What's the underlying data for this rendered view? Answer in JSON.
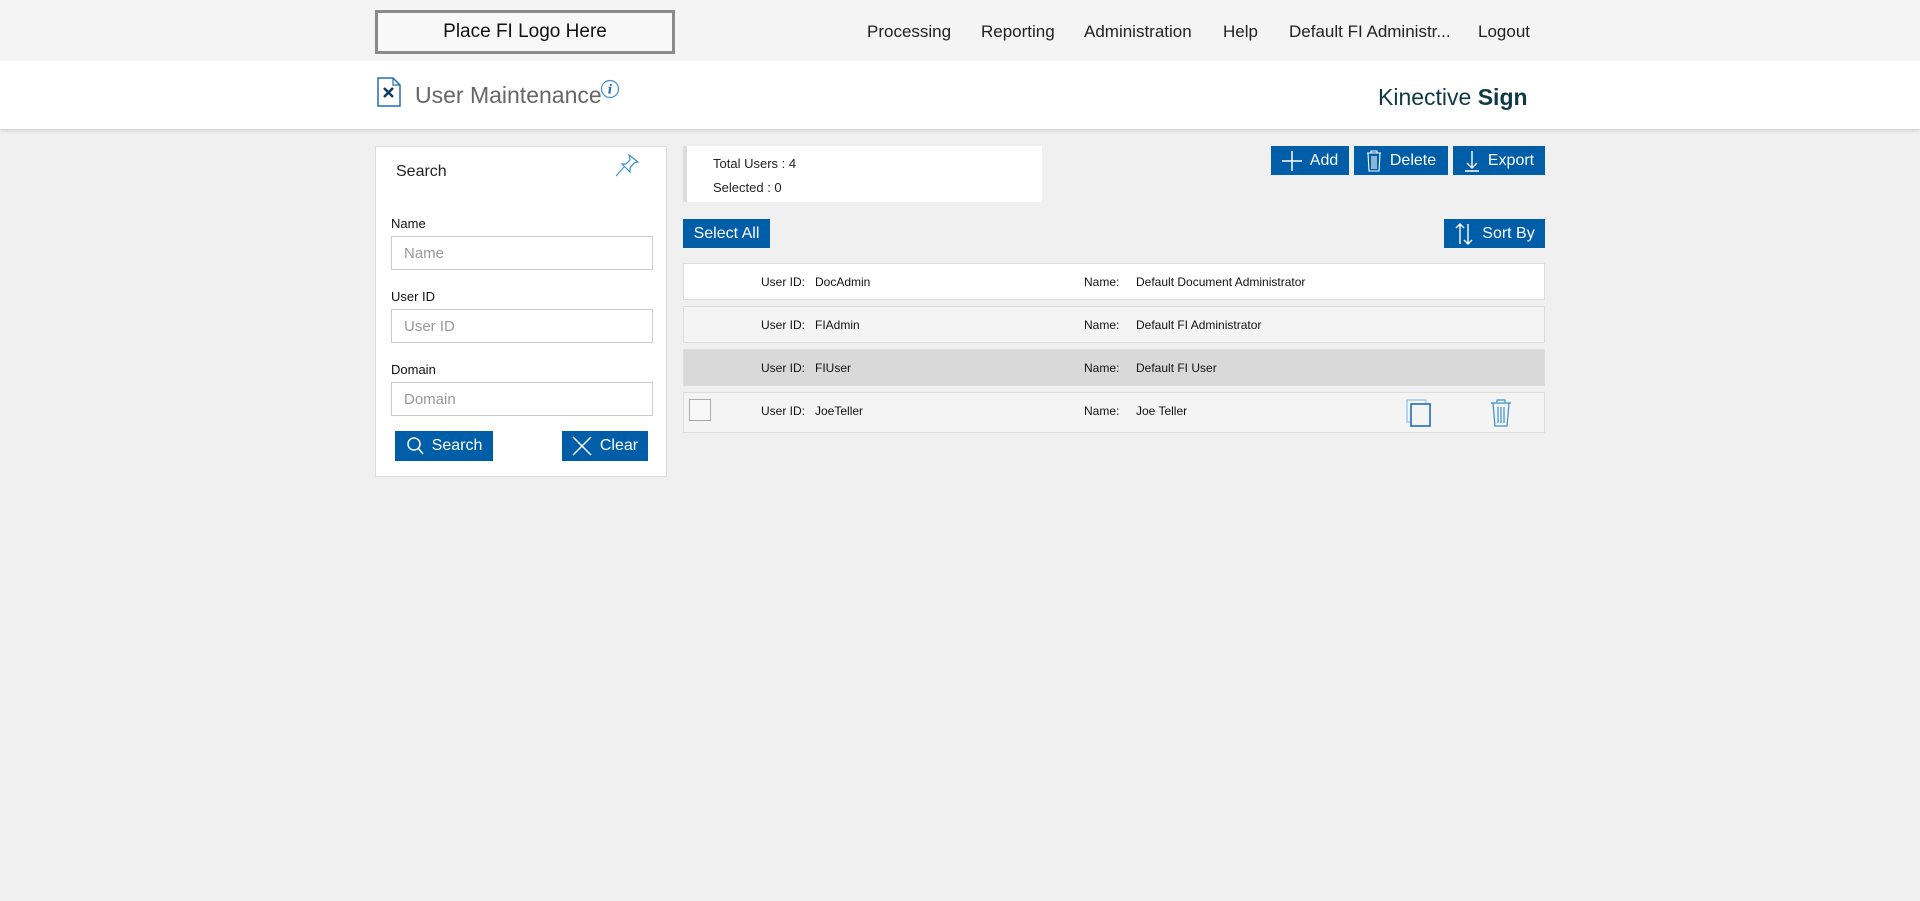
{
  "header": {
    "logo": "Place FI Logo Here",
    "nav": [
      "Processing",
      "Reporting",
      "Administration",
      "Help",
      "Default FI Administr...",
      "Logout"
    ]
  },
  "titlebar": {
    "title": "User Maintenance",
    "brand_light": "Kinective",
    "brand_bold": "Sign"
  },
  "search": {
    "title": "Search",
    "fields": [
      {
        "label": "Name",
        "placeholder": "Name",
        "value": ""
      },
      {
        "label": "User ID",
        "placeholder": "User ID",
        "value": ""
      },
      {
        "label": "Domain",
        "placeholder": "Domain",
        "value": ""
      }
    ],
    "search_label": "Search",
    "clear_label": "Clear"
  },
  "stats": {
    "total": "Total Users : 4",
    "selected": "Selected : 0"
  },
  "toolbar": {
    "add": "Add",
    "delete": "Delete",
    "export": "Export",
    "select_all": "Select All",
    "sort_by": "Sort By"
  },
  "users": {
    "userid_label": "User ID:",
    "name_label": "Name:",
    "rows": [
      {
        "user_id": "DocAdmin",
        "name": "Default Document Administrator"
      },
      {
        "user_id": "FIAdmin",
        "name": "Default FI Administrator"
      },
      {
        "user_id": "FIUser",
        "name": "Default FI User"
      },
      {
        "user_id": "JoeTeller",
        "name": "Joe Teller"
      }
    ]
  },
  "colors": {
    "accent": "#005ea8",
    "brand": "#0e3a45"
  }
}
